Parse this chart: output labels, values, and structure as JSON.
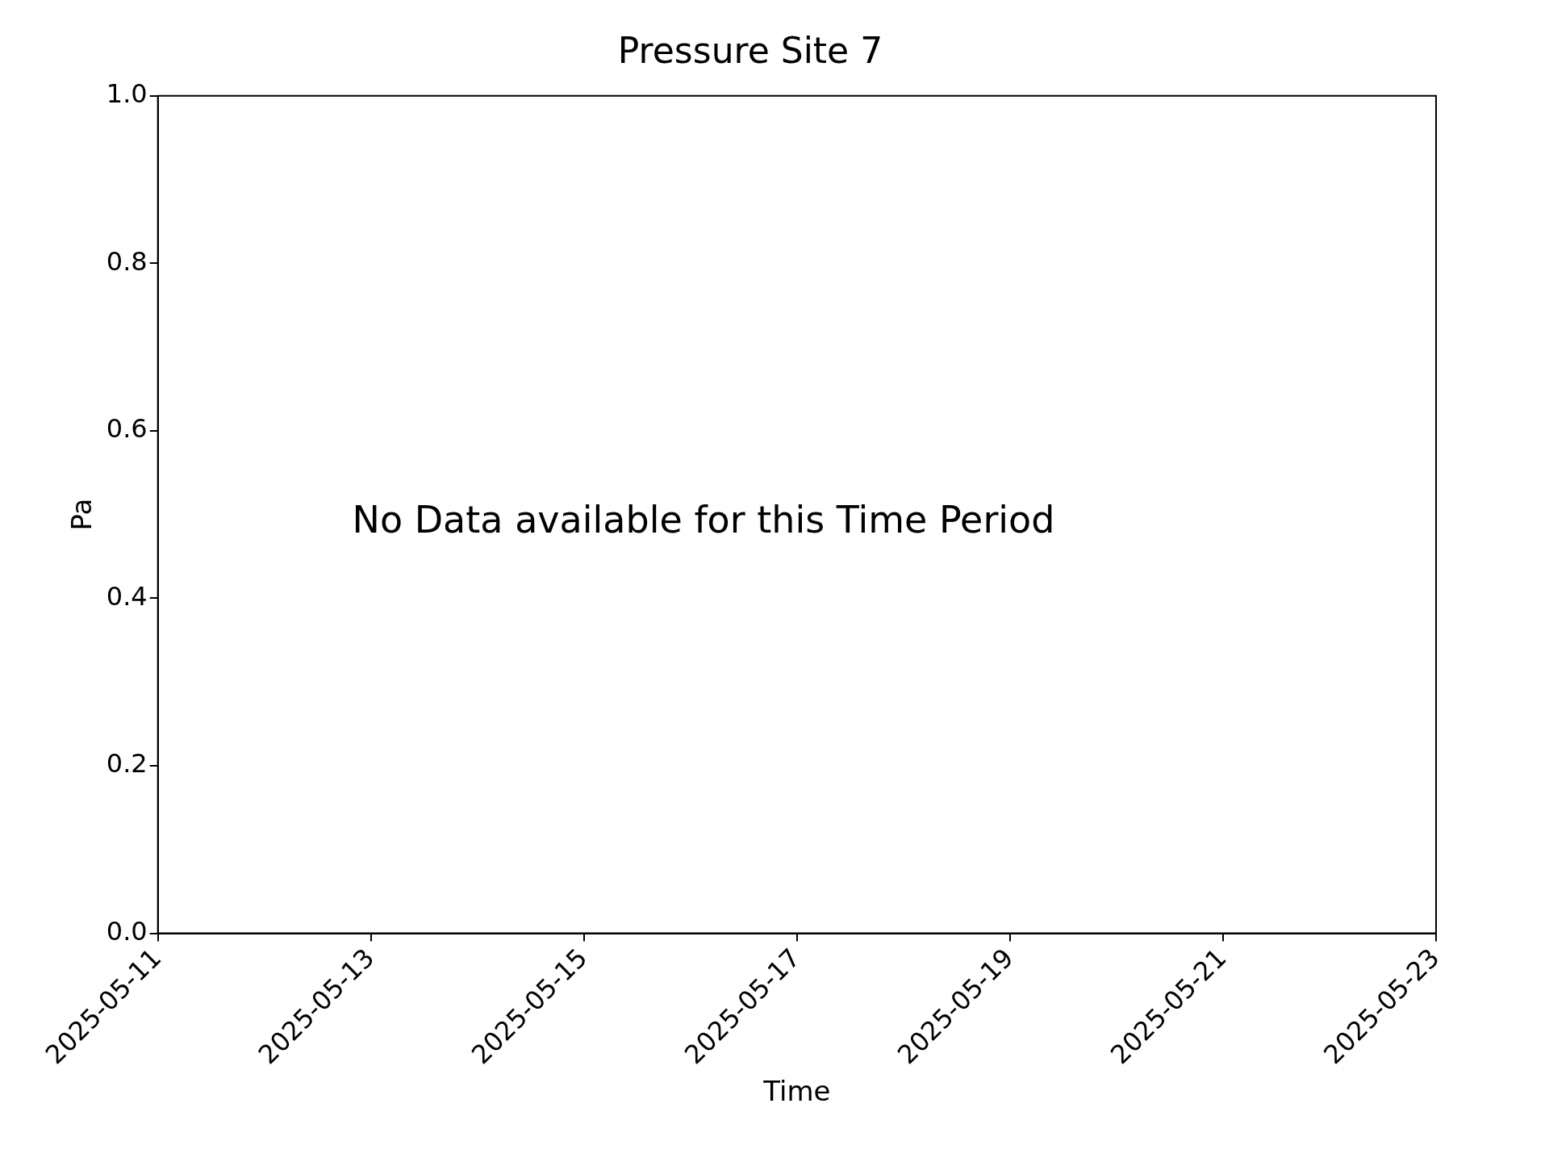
{
  "chart_data": {
    "type": "line",
    "title": "Pressure Site 7",
    "xlabel": "Time",
    "ylabel": "Pa",
    "xlim": [
      "2025-05-11",
      "2025-05-23"
    ],
    "xticks": [
      "2025-05-11",
      "2025-05-13",
      "2025-05-15",
      "2025-05-17",
      "2025-05-19",
      "2025-05-21",
      "2025-05-23"
    ],
    "ylim": [
      0,
      1
    ],
    "yticks": [
      {
        "value": 0,
        "label": "0.0"
      },
      0.2,
      0.4,
      0.6,
      0.8,
      {
        "value": 1,
        "label": "1.0"
      }
    ],
    "grid": false,
    "legend": false,
    "annotations": [
      "No Data available for this Time Period"
    ]
  }
}
